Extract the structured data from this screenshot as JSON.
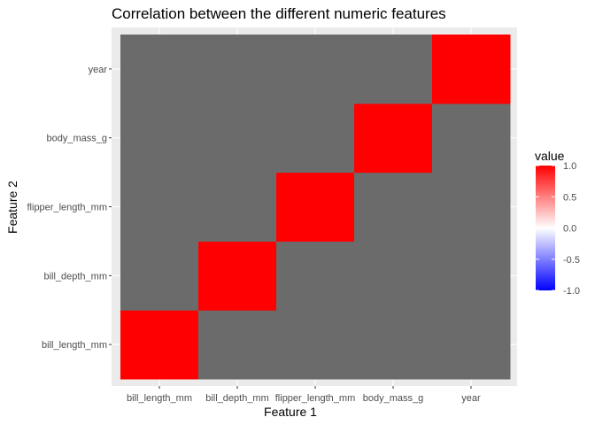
{
  "chart_data": {
    "type": "heatmap",
    "title": "Correlation between the different numeric features",
    "xlabel": "Feature 1",
    "ylabel": "Feature 2",
    "x_categories": [
      "bill_length_mm",
      "bill_depth_mm",
      "flipper_length_mm",
      "body_mass_g",
      "year"
    ],
    "y_categories": [
      "bill_length_mm",
      "bill_depth_mm",
      "flipper_length_mm",
      "body_mass_g",
      "year"
    ],
    "cells": [
      {
        "x": "bill_length_mm",
        "y": "bill_length_mm",
        "value": 1.0
      },
      {
        "x": "bill_depth_mm",
        "y": "bill_depth_mm",
        "value": 1.0
      },
      {
        "x": "flipper_length_mm",
        "y": "flipper_length_mm",
        "value": 1.0
      },
      {
        "x": "body_mass_g",
        "y": "body_mass_g",
        "value": 1.0
      },
      {
        "x": "year",
        "y": "year",
        "value": 1.0
      }
    ],
    "missing_value_color": "#6b6b6b",
    "legend": {
      "title": "value",
      "range": [
        -1.0,
        1.0
      ],
      "tick_labels": [
        "1.0",
        "0.5",
        "0.0",
        "-0.5",
        "-1.0"
      ],
      "tick_values": [
        1.0,
        0.5,
        0.0,
        -0.5,
        -1.0
      ],
      "colors": {
        "low": "#0000ff",
        "mid": "#ffffff",
        "high": "#ff0000"
      },
      "placement": "right"
    },
    "panel_background": "#ebebeb",
    "grid": true
  }
}
